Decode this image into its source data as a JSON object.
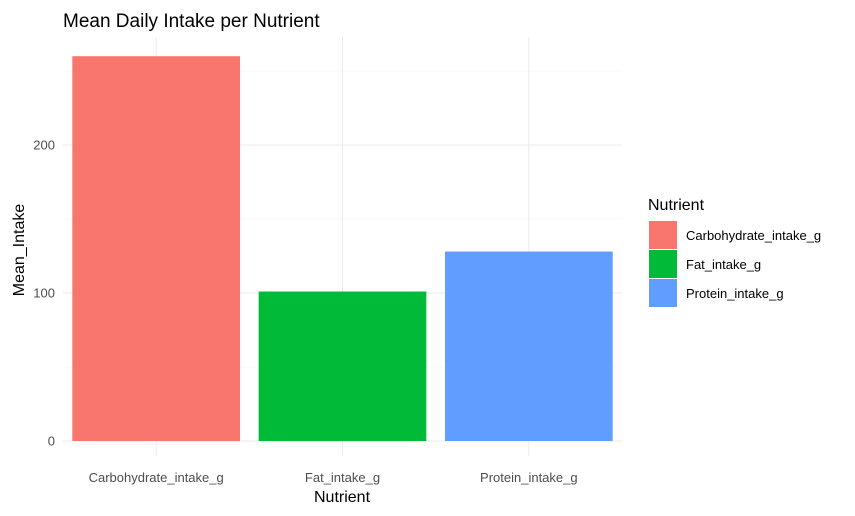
{
  "chart_data": {
    "type": "bar",
    "title": "Mean Daily Intake per Nutrient",
    "xlabel": "Nutrient",
    "ylabel": "Mean_Intake",
    "categories": [
      "Carbohydrate_intake_g",
      "Fat_intake_g",
      "Protein_intake_g"
    ],
    "values": [
      260,
      101,
      128
    ],
    "colors": [
      "#F8766D",
      "#00BA38",
      "#619CFF"
    ],
    "ylim": [
      0,
      270
    ],
    "yticks": [
      0,
      100,
      200
    ],
    "grid": true,
    "legend": {
      "title": "Nutrient",
      "placement": "right",
      "entries": [
        "Carbohydrate_intake_g",
        "Fat_intake_g",
        "Protein_intake_g"
      ]
    }
  }
}
